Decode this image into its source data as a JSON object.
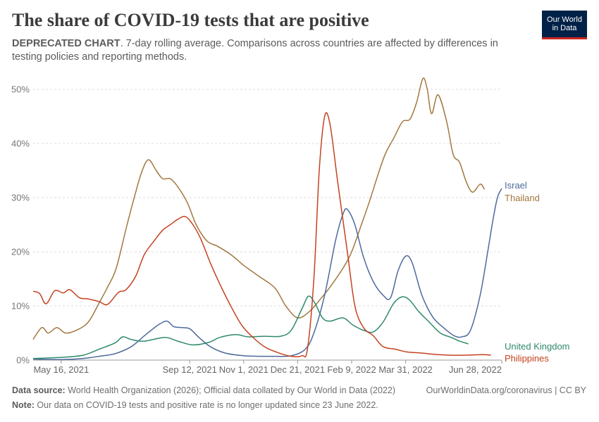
{
  "header": {
    "title": "The share of COVID-19 tests that are positive",
    "subtitle_bold": "DEPRECATED CHART",
    "subtitle_rest": ". 7-day rolling average. Comparisons across countries are affected by differences in testing policies and reporting methods."
  },
  "logo": {
    "line1": "Our World",
    "line2": "in Data"
  },
  "footer": {
    "source_label": "Data source:",
    "source_text": " World Health Organization (2026); Official data collated by Our World in Data (2022)",
    "url_text": "OurWorldinData.org/coronavirus | CC BY",
    "note_label": "Note:",
    "note_text": " Our data on COVID-19 tests and positive rate is no longer updated since 23 June 2022."
  },
  "chart_data": {
    "type": "line",
    "x_type": "date",
    "x_range": [
      "2021-04-20",
      "2022-06-28"
    ],
    "ylim": [
      0,
      50
    ],
    "y_ticks": [
      0,
      10,
      20,
      30,
      40,
      50
    ],
    "y_tick_labels": [
      "0%",
      "10%",
      "20%",
      "30%",
      "40%",
      "50%"
    ],
    "x_ticks": [
      "2021-05-16",
      "2021-09-12",
      "2021-11-01",
      "2021-12-21",
      "2022-02-09",
      "2022-03-31",
      "2022-06-28"
    ],
    "x_tick_labels": [
      "May 16, 2021",
      "Sep 12, 2021",
      "Nov 1, 2021",
      "Dec 21, 2021",
      "Feb 9, 2022",
      "Mar 31, 2022",
      "Jun 28, 2022"
    ],
    "grid": true,
    "legend": "inline-right",
    "series": [
      {
        "name": "Thailand",
        "color": "#a2773f",
        "points": [
          [
            "2021-04-20",
            3.8
          ],
          [
            "2021-04-28",
            6.0
          ],
          [
            "2021-05-04",
            5.0
          ],
          [
            "2021-05-12",
            6.0
          ],
          [
            "2021-05-20",
            5.0
          ],
          [
            "2021-05-30",
            5.5
          ],
          [
            "2021-06-10",
            7.0
          ],
          [
            "2021-06-20",
            10.5
          ],
          [
            "2021-06-28",
            13.5
          ],
          [
            "2021-07-06",
            17.0
          ],
          [
            "2021-07-16",
            25.0
          ],
          [
            "2021-07-24",
            31.0
          ],
          [
            "2021-07-30",
            35.0
          ],
          [
            "2021-08-05",
            37.0
          ],
          [
            "2021-08-12",
            35.0
          ],
          [
            "2021-08-18",
            33.5
          ],
          [
            "2021-08-25",
            33.5
          ],
          [
            "2021-09-01",
            32.0
          ],
          [
            "2021-09-10",
            29.0
          ],
          [
            "2021-09-18",
            25.0
          ],
          [
            "2021-09-28",
            22.0
          ],
          [
            "2021-10-08",
            21.0
          ],
          [
            "2021-10-20",
            19.5
          ],
          [
            "2021-11-01",
            17.5
          ],
          [
            "2021-11-15",
            15.5
          ],
          [
            "2021-11-30",
            13.3
          ],
          [
            "2021-12-10",
            10.0
          ],
          [
            "2021-12-21",
            7.8
          ],
          [
            "2022-01-01",
            9.0
          ],
          [
            "2022-01-10",
            11.0
          ],
          [
            "2022-01-20",
            13.5
          ],
          [
            "2022-02-01",
            17.0
          ],
          [
            "2022-02-09",
            20.0
          ],
          [
            "2022-02-18",
            25.0
          ],
          [
            "2022-02-25",
            29.0
          ],
          [
            "2022-03-05",
            34.0
          ],
          [
            "2022-03-12",
            38.0
          ],
          [
            "2022-03-20",
            41.0
          ],
          [
            "2022-03-28",
            44.0
          ],
          [
            "2022-04-04",
            44.5
          ],
          [
            "2022-04-10",
            47.5
          ],
          [
            "2022-04-16",
            52.0
          ],
          [
            "2022-04-20",
            50.0
          ],
          [
            "2022-04-24",
            45.5
          ],
          [
            "2022-04-30",
            49.0
          ],
          [
            "2022-05-08",
            44.0
          ],
          [
            "2022-05-14",
            38.0
          ],
          [
            "2022-05-20",
            36.5
          ],
          [
            "2022-05-26",
            33.0
          ],
          [
            "2022-06-01",
            31.0
          ],
          [
            "2022-06-08",
            32.5
          ],
          [
            "2022-06-12",
            31.5
          ]
        ]
      },
      {
        "name": "Israel",
        "color": "#4c6a9c",
        "points": [
          [
            "2021-04-20",
            0.2
          ],
          [
            "2021-05-16",
            0.1
          ],
          [
            "2021-06-05",
            0.3
          ],
          [
            "2021-06-20",
            0.7
          ],
          [
            "2021-07-05",
            1.2
          ],
          [
            "2021-07-20",
            2.5
          ],
          [
            "2021-08-01",
            4.5
          ],
          [
            "2021-08-14",
            6.5
          ],
          [
            "2021-08-22",
            7.2
          ],
          [
            "2021-08-28",
            6.2
          ],
          [
            "2021-09-05",
            6.0
          ],
          [
            "2021-09-12",
            5.8
          ],
          [
            "2021-09-20",
            4.3
          ],
          [
            "2021-10-01",
            2.5
          ],
          [
            "2021-10-15",
            1.3
          ],
          [
            "2021-11-01",
            0.8
          ],
          [
            "2021-11-15",
            0.7
          ],
          [
            "2021-12-01",
            0.7
          ],
          [
            "2021-12-15",
            0.8
          ],
          [
            "2021-12-28",
            2.0
          ],
          [
            "2022-01-05",
            5.0
          ],
          [
            "2022-01-15",
            12.0
          ],
          [
            "2022-01-25",
            22.0
          ],
          [
            "2022-02-01",
            27.0
          ],
          [
            "2022-02-05",
            27.8
          ],
          [
            "2022-02-12",
            25.0
          ],
          [
            "2022-02-20",
            19.0
          ],
          [
            "2022-03-01",
            14.5
          ],
          [
            "2022-03-10",
            12.0
          ],
          [
            "2022-03-17",
            11.5
          ],
          [
            "2022-03-24",
            16.5
          ],
          [
            "2022-03-31",
            19.2
          ],
          [
            "2022-04-06",
            18.0
          ],
          [
            "2022-04-15",
            12.0
          ],
          [
            "2022-04-25",
            8.0
          ],
          [
            "2022-05-05",
            6.0
          ],
          [
            "2022-05-15",
            4.5
          ],
          [
            "2022-05-22",
            4.3
          ],
          [
            "2022-05-30",
            5.5
          ],
          [
            "2022-06-08",
            12.0
          ],
          [
            "2022-06-15",
            20.0
          ],
          [
            "2022-06-20",
            26.0
          ],
          [
            "2022-06-24",
            30.0
          ],
          [
            "2022-06-28",
            31.7
          ]
        ]
      },
      {
        "name": "United Kingdom",
        "color": "#2e8a6a",
        "points": [
          [
            "2021-04-20",
            0.3
          ],
          [
            "2021-05-16",
            0.5
          ],
          [
            "2021-06-05",
            0.9
          ],
          [
            "2021-06-20",
            2.0
          ],
          [
            "2021-07-05",
            3.2
          ],
          [
            "2021-07-12",
            4.3
          ],
          [
            "2021-07-20",
            3.8
          ],
          [
            "2021-08-01",
            3.5
          ],
          [
            "2021-08-20",
            4.2
          ],
          [
            "2021-09-01",
            3.5
          ],
          [
            "2021-09-15",
            2.8
          ],
          [
            "2021-09-30",
            3.3
          ],
          [
            "2021-10-10",
            4.2
          ],
          [
            "2021-10-25",
            4.7
          ],
          [
            "2021-11-05",
            4.3
          ],
          [
            "2021-11-20",
            4.4
          ],
          [
            "2021-12-05",
            4.4
          ],
          [
            "2021-12-15",
            5.5
          ],
          [
            "2021-12-25",
            9.5
          ],
          [
            "2021-12-31",
            11.8
          ],
          [
            "2022-01-06",
            10.5
          ],
          [
            "2022-01-13",
            7.8
          ],
          [
            "2022-01-20",
            7.2
          ],
          [
            "2022-02-01",
            7.8
          ],
          [
            "2022-02-10",
            6.5
          ],
          [
            "2022-02-20",
            5.5
          ],
          [
            "2022-03-01",
            5.2
          ],
          [
            "2022-03-10",
            7.0
          ],
          [
            "2022-03-20",
            10.5
          ],
          [
            "2022-03-28",
            11.7
          ],
          [
            "2022-04-04",
            11.0
          ],
          [
            "2022-04-12",
            9.0
          ],
          [
            "2022-04-22",
            7.0
          ],
          [
            "2022-05-02",
            5.0
          ],
          [
            "2022-05-12",
            4.2
          ],
          [
            "2022-05-20",
            3.5
          ],
          [
            "2022-05-28",
            3.0
          ]
        ]
      },
      {
        "name": "Philippines",
        "color": "#c4421f",
        "points": [
          [
            "2021-04-20",
            12.7
          ],
          [
            "2021-04-26",
            12.3
          ],
          [
            "2021-05-02",
            10.4
          ],
          [
            "2021-05-10",
            12.8
          ],
          [
            "2021-05-18",
            12.4
          ],
          [
            "2021-05-24",
            13.0
          ],
          [
            "2021-06-02",
            11.5
          ],
          [
            "2021-06-10",
            11.3
          ],
          [
            "2021-06-20",
            10.8
          ],
          [
            "2021-06-28",
            10.3
          ],
          [
            "2021-07-08",
            12.5
          ],
          [
            "2021-07-15",
            13.0
          ],
          [
            "2021-07-24",
            15.5
          ],
          [
            "2021-08-01",
            19.5
          ],
          [
            "2021-08-10",
            22.0
          ],
          [
            "2021-08-18",
            24.0
          ],
          [
            "2021-08-25",
            25.0
          ],
          [
            "2021-09-01",
            26.0
          ],
          [
            "2021-09-08",
            26.5
          ],
          [
            "2021-09-15",
            25.0
          ],
          [
            "2021-09-22",
            22.5
          ],
          [
            "2021-10-01",
            18.0
          ],
          [
            "2021-10-10",
            14.0
          ],
          [
            "2021-10-20",
            10.0
          ],
          [
            "2021-10-30",
            6.5
          ],
          [
            "2021-11-08",
            4.5
          ],
          [
            "2021-11-20",
            2.5
          ],
          [
            "2021-12-01",
            1.5
          ],
          [
            "2021-12-15",
            0.7
          ],
          [
            "2021-12-25",
            0.8
          ],
          [
            "2021-12-30",
            2.0
          ],
          [
            "2022-01-05",
            15.0
          ],
          [
            "2022-01-10",
            35.0
          ],
          [
            "2022-01-15",
            45.0
          ],
          [
            "2022-01-20",
            43.5
          ],
          [
            "2022-01-27",
            33.0
          ],
          [
            "2022-02-05",
            20.0
          ],
          [
            "2022-02-12",
            10.0
          ],
          [
            "2022-02-20",
            6.0
          ],
          [
            "2022-03-01",
            4.5
          ],
          [
            "2022-03-10",
            2.5
          ],
          [
            "2022-03-22",
            2.0
          ],
          [
            "2022-04-01",
            1.5
          ],
          [
            "2022-04-15",
            1.3
          ],
          [
            "2022-05-01",
            1.0
          ],
          [
            "2022-05-20",
            0.9
          ],
          [
            "2022-06-10",
            1.0
          ],
          [
            "2022-06-18",
            0.9
          ]
        ]
      }
    ]
  }
}
